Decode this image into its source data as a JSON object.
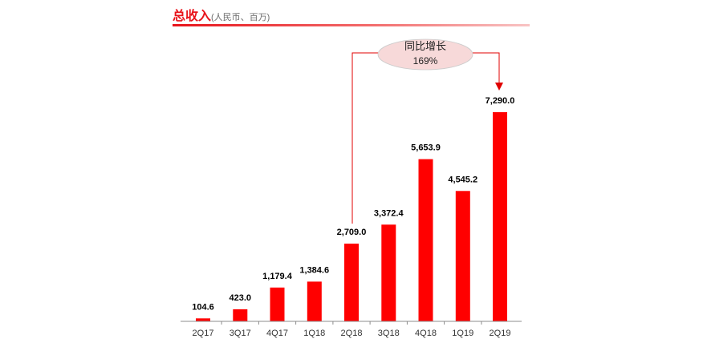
{
  "header": {
    "title": "总收入",
    "subtitle": "(人民币、百万)"
  },
  "callout": {
    "title": "同比增长",
    "value": "169%"
  },
  "colors": {
    "bar": "#ff0000",
    "title": "#e8141b",
    "axis": "#8c8c8c",
    "callout_fill": "#f7d9d9",
    "connector": "#e00000"
  },
  "chart_data": {
    "type": "bar",
    "title": "总收入(人民币、百万)",
    "xlabel": "",
    "ylabel": "",
    "grid": false,
    "categories": [
      "2Q17",
      "3Q17",
      "4Q17",
      "1Q18",
      "2Q18",
      "3Q18",
      "4Q18",
      "1Q19",
      "2Q19"
    ],
    "values": [
      104.6,
      423.0,
      1179.4,
      1384.6,
      2709.0,
      3372.4,
      5653.9,
      4545.2,
      7290.0
    ],
    "value_labels": [
      "104.6",
      "423.0",
      "1,179.4",
      "1,384.6",
      "2,709.0",
      "3,372.4",
      "5,653.9",
      "4,545.2",
      "7,290.0"
    ],
    "ylim": [
      0,
      7290.0
    ],
    "annotation": {
      "text": "同比增长 169%",
      "from": "2Q18",
      "to": "2Q19"
    }
  }
}
